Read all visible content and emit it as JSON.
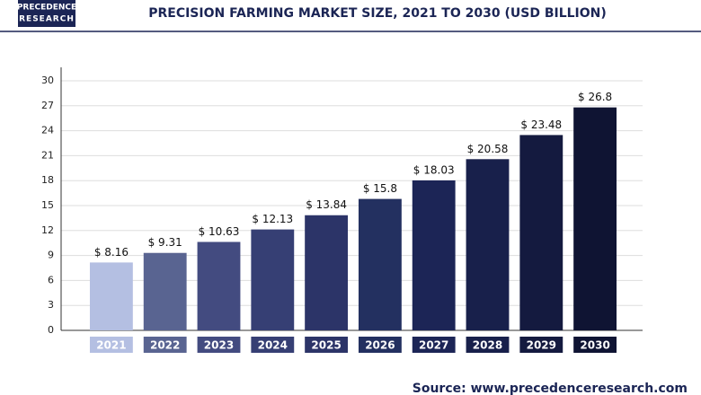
{
  "header": {
    "logo": [
      "PRECEDENCE",
      "RESEARCH"
    ]
  },
  "chart_data": {
    "type": "bar",
    "title": "PRECISION FARMING MARKET SIZE, 2021 TO 2030 (USD BILLION)",
    "categories": [
      "2021",
      "2022",
      "2023",
      "2024",
      "2025",
      "2026",
      "2027",
      "2028",
      "2029",
      "2030"
    ],
    "values": [
      8.16,
      9.31,
      10.63,
      12.13,
      13.84,
      15.8,
      18.03,
      20.58,
      23.48,
      26.8
    ],
    "value_labels": [
      "$ 8.16",
      "$ 9.31",
      "$ 10.63",
      "$ 12.13",
      "$ 13.84",
      "$ 15.8",
      "$ 18.03",
      "$ 20.58",
      "$ 23.48",
      "$ 26.8"
    ],
    "colors": [
      "#b4bfe2",
      "#596491",
      "#434b80",
      "#363f74",
      "#2c3468",
      "#233060",
      "#1c2556",
      "#18204b",
      "#141a3f",
      "#0f1433"
    ],
    "ylim": [
      0,
      30
    ],
    "yticks": [
      0,
      3,
      6,
      9,
      12,
      15,
      18,
      21,
      24,
      27,
      30
    ],
    "grid": true
  },
  "footer": {
    "source": "Source: www.precedenceresearch.com"
  }
}
